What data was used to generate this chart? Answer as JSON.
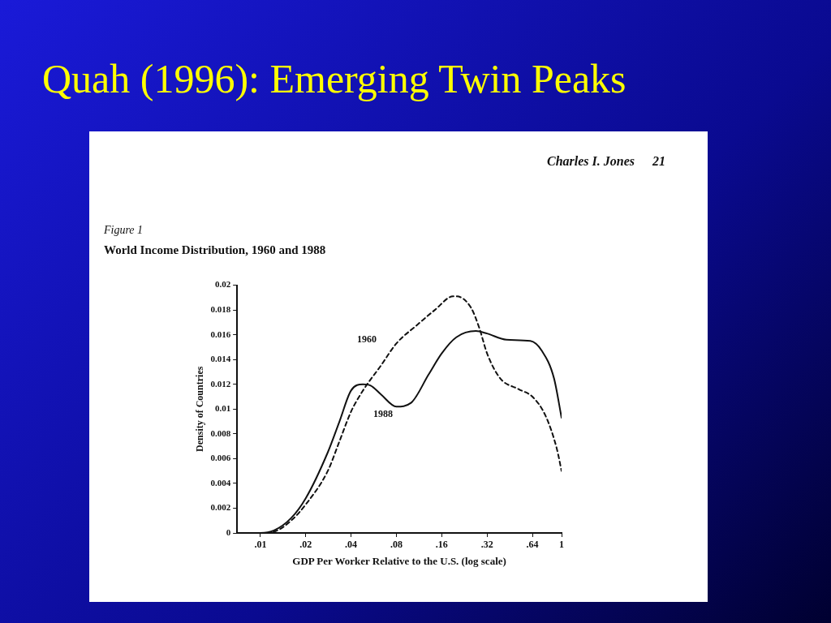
{
  "chart_data": {
    "type": "line",
    "title": "Quah (1996): Emerging Twin Peaks",
    "subtitle": "World Income Distribution, 1960 and 1988",
    "annotations": [
      "Charles I. Jones",
      "21",
      "Figure 1"
    ],
    "xlabel": "GDP Per Worker Relative to the U.S. (log scale)",
    "ylabel": "Density of Countries",
    "log": "x",
    "grid": false,
    "legend": false,
    "marker": "none",
    "xlim": [
      0.007,
      1
    ],
    "xticks": [
      {
        "value": 0.01,
        "label": ".01"
      },
      {
        "value": 0.02,
        "label": ".02"
      },
      {
        "value": 0.04,
        "label": ".04"
      },
      {
        "value": 0.08,
        "label": ".08"
      },
      {
        "value": 0.16,
        "label": ".16"
      },
      {
        "value": 0.32,
        "label": ".32"
      },
      {
        "value": 0.64,
        "label": ".64"
      },
      1
    ],
    "ylim": [
      0,
      0.02
    ],
    "yticks": [
      0,
      0.002,
      0.004,
      0.006,
      0.008,
      0.01,
      0.012,
      0.014,
      0.016,
      0.018,
      0.02
    ],
    "series": [
      {
        "name": "1960",
        "color": "#111111",
        "line_style": "dashed",
        "x": [
          0.007,
          0.01,
          0.0123,
          0.016,
          0.02,
          0.028,
          0.0335,
          0.04,
          0.048,
          0.063,
          0.08,
          0.11,
          0.144,
          0.19,
          0.2,
          0.25,
          0.285,
          0.32,
          0.39,
          0.52,
          0.64,
          0.78,
          0.93,
          1
        ],
        "values": [
          0,
          0,
          0.0001,
          0.001,
          0.0023,
          0.005,
          0.0074,
          0.0098,
          0.0115,
          0.0135,
          0.0153,
          0.0168,
          0.018,
          0.0191,
          0.0191,
          0.0182,
          0.0165,
          0.0145,
          0.0125,
          0.0116,
          0.011,
          0.0095,
          0.0068,
          0.005
        ]
      },
      {
        "name": "1988",
        "color": "#111111",
        "line_style": "solid",
        "x": [
          0.007,
          0.01,
          0.0123,
          0.016,
          0.02,
          0.028,
          0.0335,
          0.04,
          0.048,
          0.054,
          0.063,
          0.08,
          0.1,
          0.131,
          0.16,
          0.2,
          0.27,
          0.32,
          0.43,
          0.62,
          0.74,
          0.89,
          1
        ],
        "values": [
          0,
          0,
          0.0002,
          0.0012,
          0.0028,
          0.0065,
          0.009,
          0.0115,
          0.012,
          0.0119,
          0.0112,
          0.0102,
          0.0105,
          0.0128,
          0.0145,
          0.0158,
          0.0163,
          0.0161,
          0.0156,
          0.0155,
          0.0147,
          0.0125,
          0.0093
        ]
      }
    ]
  }
}
